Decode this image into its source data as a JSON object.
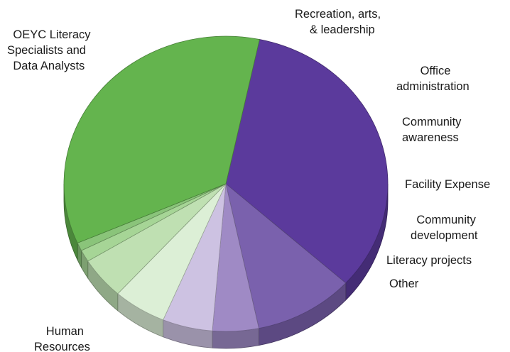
{
  "chart_data": {
    "type": "pie",
    "title": "",
    "slices": [
      {
        "label": [
          "OEYC Literacy",
          "Specialists and",
          "Data Analysts"
        ],
        "value": 33.4,
        "color": "#5b3a9c"
      },
      {
        "label": [
          "Recreation, arts,",
          "& leadership"
        ],
        "value": 10.0,
        "color": "#7a61ad"
      },
      {
        "label": [
          "Office",
          "administration"
        ],
        "value": 4.6,
        "color": "#9f8ac5"
      },
      {
        "label": [
          "Community",
          "awareness"
        ],
        "value": 5.0,
        "color": "#cdc2e2"
      },
      {
        "label": [
          "Facility Expense"
        ],
        "value": 5.3,
        "color": "#dcefd6"
      },
      {
        "label": [
          "Community",
          "development"
        ],
        "value": 4.6,
        "color": "#bfe0b2"
      },
      {
        "label": [
          "Literacy projects"
        ],
        "value": 1.3,
        "color": "#a6d596"
      },
      {
        "label": [
          "Other"
        ],
        "value": 0.9,
        "color": "#8ac47a"
      },
      {
        "label": [
          "Human",
          "Resources"
        ],
        "value": 34.9,
        "color": "#64b44e"
      }
    ],
    "start_angle_deg": 12,
    "direction": "clockwise",
    "three_d": true
  }
}
